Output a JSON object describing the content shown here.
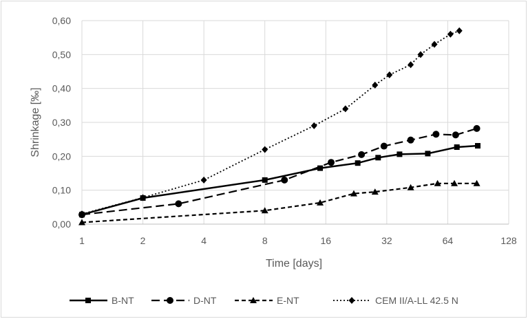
{
  "chart_data": {
    "type": "line",
    "title": "",
    "xlabel": "Time [days]",
    "ylabel": "Shrinkage [‰]",
    "x_scale": "log2",
    "xlim": [
      1,
      128
    ],
    "ylim": [
      0,
      0.6
    ],
    "x_ticks": [
      1,
      2,
      4,
      8,
      16,
      32,
      64,
      128
    ],
    "x_tick_labels": [
      "1",
      "2",
      "4",
      "8",
      "16",
      "32",
      "64",
      "128"
    ],
    "y_ticks": [
      0,
      0.1,
      0.2,
      0.3,
      0.4,
      0.5,
      0.6
    ],
    "y_tick_labels": [
      "0,00",
      "0,10",
      "0,20",
      "0,30",
      "0,40",
      "0,50",
      "0,60"
    ],
    "grid": true,
    "legend_position": "bottom",
    "series": [
      {
        "name": "B-NT",
        "dash": "solid",
        "marker": "square",
        "color": "#000000",
        "x": [
          1,
          2,
          8,
          15,
          23,
          29,
          37,
          51,
          71,
          90
        ],
        "y": [
          0.028,
          0.077,
          0.13,
          0.165,
          0.18,
          0.196,
          0.206,
          0.208,
          0.227,
          0.231
        ]
      },
      {
        "name": "D-NT",
        "dash": "dashed",
        "marker": "circle",
        "color": "#000000",
        "x": [
          1,
          3,
          10,
          17,
          24,
          31,
          42,
          56,
          70,
          89
        ],
        "y": [
          0.028,
          0.06,
          0.13,
          0.182,
          0.205,
          0.23,
          0.248,
          0.265,
          0.263,
          0.282
        ]
      },
      {
        "name": "E-NT",
        "dash": "short-dash",
        "marker": "triangle",
        "color": "#000000",
        "x": [
          1,
          8,
          15,
          22,
          28,
          42,
          57,
          69,
          89
        ],
        "y": [
          0.005,
          0.04,
          0.063,
          0.09,
          0.095,
          0.108,
          0.12,
          0.12,
          0.12
        ]
      },
      {
        "name": "CEM II/A-LL 42.5 N",
        "dash": "dotted",
        "marker": "diamond",
        "color": "#000000",
        "x": [
          1,
          2,
          4,
          8,
          14,
          20,
          28,
          33,
          42,
          47,
          55,
          66,
          73
        ],
        "y": [
          0.03,
          0.078,
          0.13,
          0.22,
          0.29,
          0.34,
          0.41,
          0.44,
          0.47,
          0.5,
          0.53,
          0.56,
          0.57
        ]
      }
    ]
  }
}
